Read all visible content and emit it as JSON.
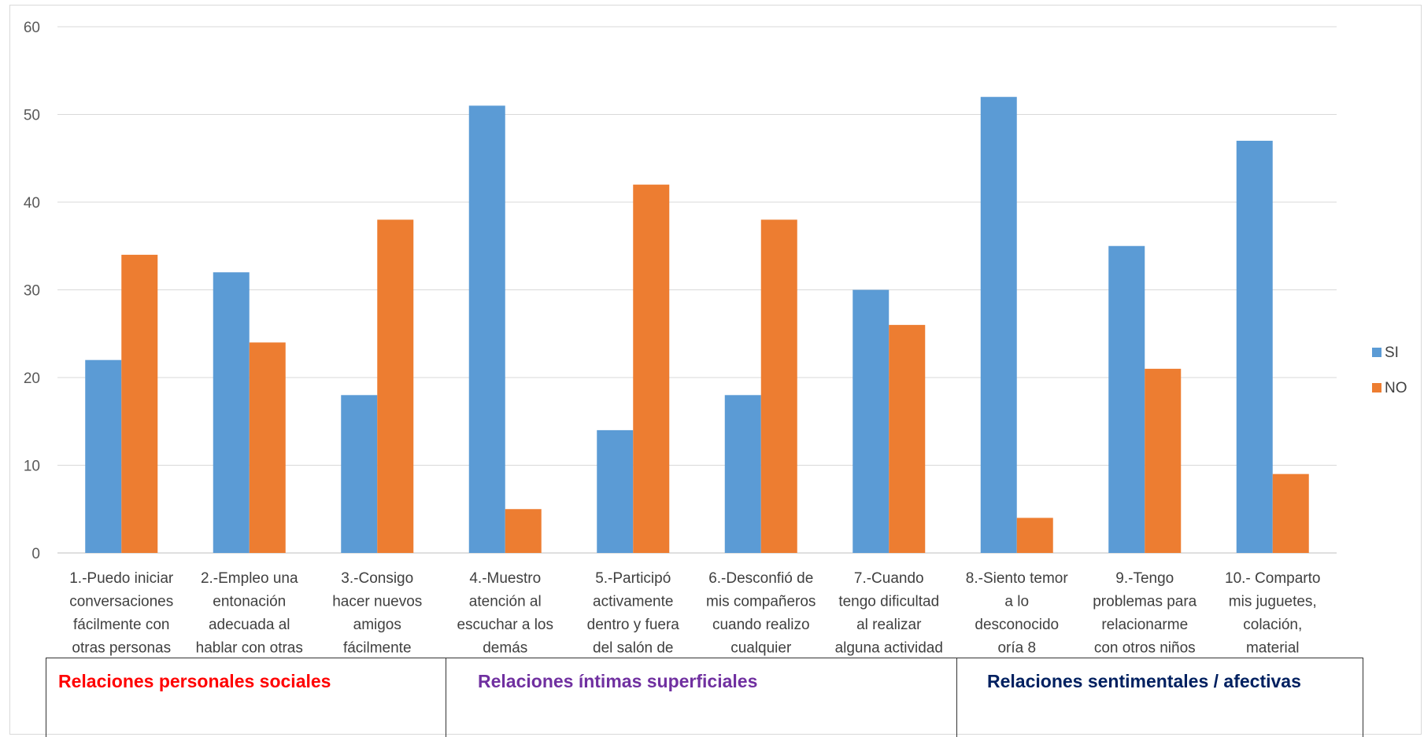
{
  "chart_data": {
    "type": "bar",
    "title": "",
    "xlabel": "",
    "ylabel": "",
    "ylim": [
      0,
      60
    ],
    "yticks": [
      0,
      10,
      20,
      30,
      40,
      50,
      60
    ],
    "grid": true,
    "legend_position": "right",
    "categories": [
      [
        "1.-Puedo iniciar",
        "conversaciones",
        "fácilmente con",
        "otras personas"
      ],
      [
        "2.-Empleo una",
        "entonación",
        "adecuada al",
        "hablar con otras"
      ],
      [
        "3.-Consigo",
        "hacer nuevos",
        "amigos",
        "fácilmente"
      ],
      [
        "4.-Muestro",
        "atención al",
        "escuchar a los",
        "demás"
      ],
      [
        "5.-Participó",
        "activamente",
        "dentro y fuera",
        "del salón de"
      ],
      [
        "6.-Desconfió de",
        "mis compañeros",
        "cuando  realizo",
        "cualquier"
      ],
      [
        "7.-Cuando",
        "tengo dificultad",
        "al realizar",
        "alguna actividad"
      ],
      [
        "8.-Siento temor",
        "a lo",
        "desconocido",
        "oría 8"
      ],
      [
        "9.-Tengo",
        "problemas para",
        "relacionarme",
        "con otros niños"
      ],
      [
        "10.- Comparto",
        "mis juguetes,",
        "colación,",
        "material"
      ]
    ],
    "series": [
      {
        "name": "SI",
        "color": "#5b9bd5",
        "values": [
          22,
          32,
          18,
          51,
          14,
          18,
          30,
          52,
          35,
          47
        ]
      },
      {
        "name": "NO",
        "color": "#ed7d31",
        "values": [
          34,
          24,
          38,
          5,
          42,
          38,
          26,
          4,
          21,
          9
        ]
      }
    ]
  },
  "groups": [
    {
      "label": "Relaciones personales sociales",
      "color": "#ff0000"
    },
    {
      "label": "Relaciones íntimas superficiales",
      "color": "#7030a0"
    },
    {
      "label": "Relaciones sentimentales / afectivas",
      "color": "#002060"
    }
  ]
}
